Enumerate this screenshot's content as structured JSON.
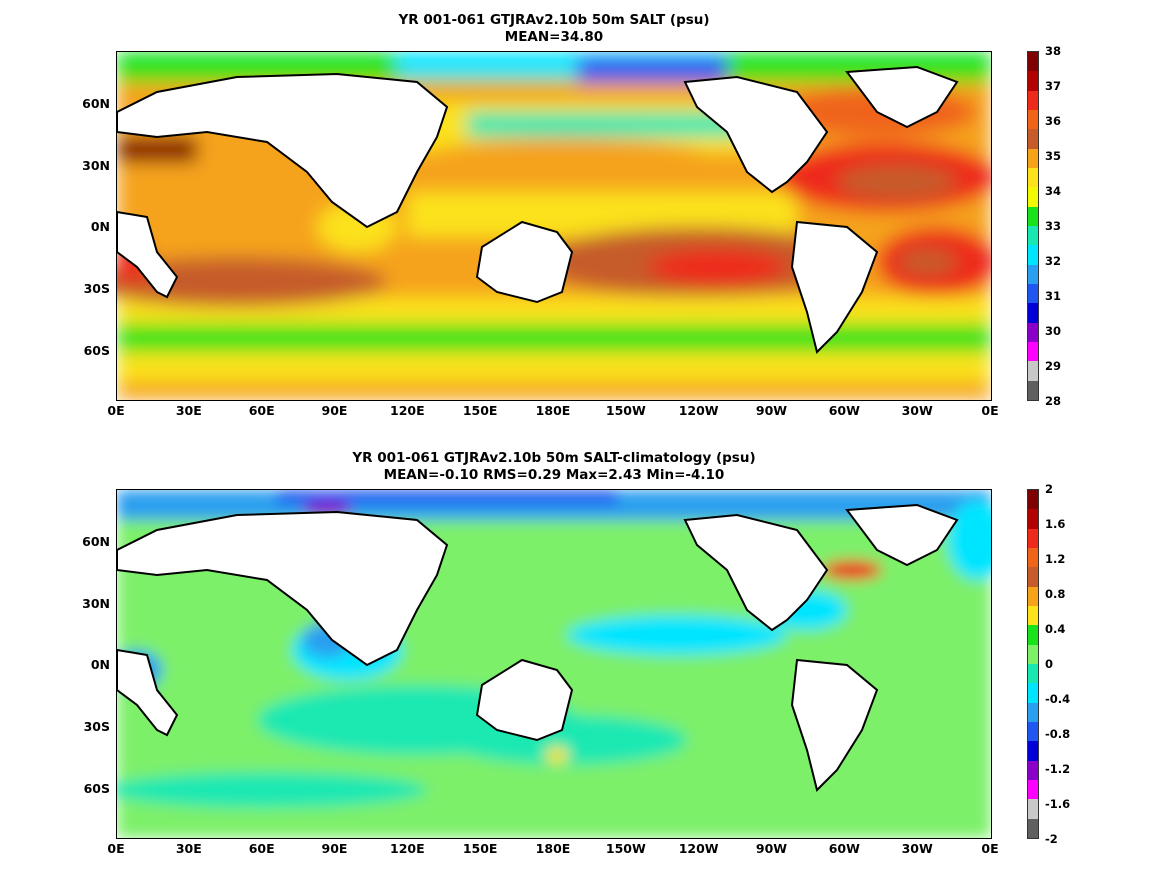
{
  "top": {
    "title_line1": "YR 001-061 GTJRAv2.10b 50m SALT (psu)",
    "title_line2": "MEAN=34.80",
    "colorbar": {
      "labels": [
        "38",
        "37",
        "36",
        "35",
        "34",
        "33",
        "32",
        "31",
        "30",
        "29",
        "28"
      ],
      "colors": [
        "#7f0000",
        "#b30000",
        "#ee2a1a",
        "#f0641a",
        "#c65c2a",
        "#f5a31a",
        "#fbe21a",
        "#f3f900",
        "#18e31a",
        "#1ae8b2",
        "#00e5ff",
        "#2a9fef",
        "#1f57f0",
        "#0000d8",
        "#8a00c8",
        "#ff00ff",
        "#c8c8c8",
        "#606060"
      ]
    }
  },
  "bottom": {
    "title_line1": "YR 001-061 GTJRAv2.10b 50m SALT-climatology (psu)",
    "title_line2": "MEAN=-0.10   RMS=0.29   Max=2.43   Min=-4.10",
    "colorbar": {
      "labels": [
        "2",
        "1.6",
        "1.2",
        "0.8",
        "0.4",
        "0",
        "-0.4",
        "-0.8",
        "-1.2",
        "-1.6",
        "-2"
      ],
      "colors": [
        "#7f0000",
        "#b30000",
        "#ee2a1a",
        "#f0641a",
        "#c65c2a",
        "#f5a31a",
        "#fbe21a",
        "#18e31a",
        "#7df06a",
        "#1ae8b2",
        "#00e5ff",
        "#2a9fef",
        "#1f57f0",
        "#0000d8",
        "#8a00c8",
        "#ff00ff",
        "#c8c8c8",
        "#606060"
      ]
    }
  },
  "lat_labels": [
    "60N",
    "30N",
    "0N",
    "30S",
    "60S"
  ],
  "lon_labels": [
    "0E",
    "30E",
    "60E",
    "90E",
    "120E",
    "150E",
    "180E",
    "150W",
    "120W",
    "90W",
    "60W",
    "30W",
    "0E"
  ]
}
